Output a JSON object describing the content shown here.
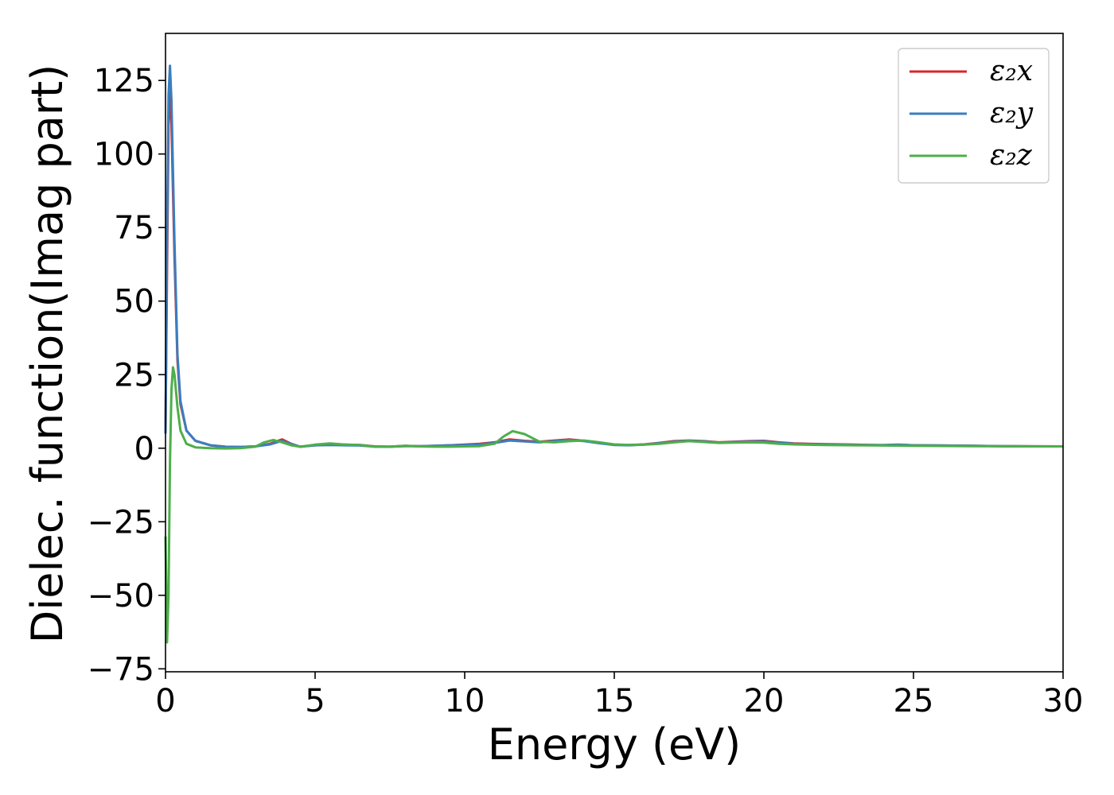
{
  "chart_data": {
    "type": "line",
    "xlabel": "Energy (eV)",
    "ylabel": "Dielec. function(Imag part)",
    "xlim": [
      0,
      30
    ],
    "ylim": [
      -76,
      141
    ],
    "xticks": [
      0,
      5,
      10,
      15,
      20,
      25,
      30
    ],
    "yticks": [
      -75,
      -50,
      -25,
      0,
      25,
      50,
      75,
      100,
      125
    ],
    "ytick_labels": [
      "−75",
      "−50",
      "−25",
      "0",
      "25",
      "50",
      "75",
      "100",
      "125"
    ],
    "grid": false,
    "legend_position": "top-right",
    "series": [
      {
        "name": "ε₂x",
        "color": "#d62728",
        "points": [
          [
            0,
            5
          ],
          [
            0.05,
            60
          ],
          [
            0.1,
            110
          ],
          [
            0.15,
            122
          ],
          [
            0.2,
            110
          ],
          [
            0.3,
            65
          ],
          [
            0.4,
            30
          ],
          [
            0.5,
            15
          ],
          [
            0.7,
            6
          ],
          [
            1,
            2.5
          ],
          [
            1.5,
            1
          ],
          [
            2,
            0.5
          ],
          [
            2.5,
            0.4
          ],
          [
            3,
            0.6
          ],
          [
            3.5,
            1.5
          ],
          [
            3.9,
            3
          ],
          [
            4.2,
            1.5
          ],
          [
            4.5,
            0.5
          ],
          [
            5,
            1
          ],
          [
            5.5,
            1.2
          ],
          [
            6,
            1.2
          ],
          [
            6.5,
            1.1
          ],
          [
            7,
            0.6
          ],
          [
            7.5,
            0.5
          ],
          [
            8,
            0.8
          ],
          [
            8.5,
            0.7
          ],
          [
            9,
            0.8
          ],
          [
            9.5,
            1
          ],
          [
            10,
            1.2
          ],
          [
            10.5,
            1.5
          ],
          [
            11,
            2
          ],
          [
            11.5,
            3
          ],
          [
            12,
            2.5
          ],
          [
            12.5,
            2.2
          ],
          [
            13,
            2.6
          ],
          [
            13.5,
            3
          ],
          [
            14,
            2.5
          ],
          [
            14.5,
            1.8
          ],
          [
            15,
            1.2
          ],
          [
            15.5,
            1.1
          ],
          [
            16,
            1.3
          ],
          [
            16.5,
            1.8
          ],
          [
            17,
            2.4
          ],
          [
            17.5,
            2.6
          ],
          [
            18,
            2.4
          ],
          [
            18.5,
            2
          ],
          [
            19,
            2.2
          ],
          [
            19.5,
            2.4
          ],
          [
            20,
            2.5
          ],
          [
            20.5,
            2
          ],
          [
            21,
            1.6
          ],
          [
            22,
            1.4
          ],
          [
            23,
            1.2
          ],
          [
            24,
            1
          ],
          [
            24.5,
            1.1
          ],
          [
            25,
            1
          ],
          [
            26,
            0.9
          ],
          [
            27,
            0.8
          ],
          [
            28,
            0.7
          ],
          [
            29,
            0.65
          ],
          [
            30,
            0.6
          ]
        ]
      },
      {
        "name": "ε₂y",
        "color": "#3a7ebf",
        "points": [
          [
            0,
            5
          ],
          [
            0.05,
            70
          ],
          [
            0.1,
            120
          ],
          [
            0.15,
            130
          ],
          [
            0.2,
            118
          ],
          [
            0.3,
            70
          ],
          [
            0.4,
            32
          ],
          [
            0.5,
            16
          ],
          [
            0.7,
            6
          ],
          [
            1,
            2.5
          ],
          [
            1.5,
            1
          ],
          [
            2,
            0.5
          ],
          [
            2.5,
            0.4
          ],
          [
            3,
            0.6
          ],
          [
            3.5,
            1.3
          ],
          [
            3.9,
            2.5
          ],
          [
            4.2,
            1.4
          ],
          [
            4.5,
            0.5
          ],
          [
            5,
            1
          ],
          [
            5.5,
            1.1
          ],
          [
            6,
            1
          ],
          [
            6.5,
            0.9
          ],
          [
            7,
            0.5
          ],
          [
            7.5,
            0.5
          ],
          [
            8,
            0.7
          ],
          [
            8.5,
            0.7
          ],
          [
            9,
            0.8
          ],
          [
            9.5,
            1
          ],
          [
            10,
            1.1
          ],
          [
            10.5,
            1.3
          ],
          [
            11,
            1.8
          ],
          [
            11.5,
            2.6
          ],
          [
            12,
            2.3
          ],
          [
            12.5,
            2
          ],
          [
            13,
            2.4
          ],
          [
            13.5,
            2.8
          ],
          [
            14,
            2.4
          ],
          [
            14.5,
            1.7
          ],
          [
            15,
            1.1
          ],
          [
            15.5,
            1
          ],
          [
            16,
            1.2
          ],
          [
            16.5,
            1.7
          ],
          [
            17,
            2.2
          ],
          [
            17.5,
            2.5
          ],
          [
            18,
            2.3
          ],
          [
            18.5,
            1.9
          ],
          [
            19,
            2.1
          ],
          [
            19.5,
            2.2
          ],
          [
            20,
            2.3
          ],
          [
            20.5,
            1.9
          ],
          [
            21,
            1.5
          ],
          [
            22,
            1.3
          ],
          [
            23,
            1.1
          ],
          [
            24,
            1.1
          ],
          [
            24.5,
            1.2
          ],
          [
            25,
            1
          ],
          [
            26,
            0.9
          ],
          [
            27,
            0.8
          ],
          [
            28,
            0.7
          ],
          [
            29,
            0.65
          ],
          [
            30,
            0.6
          ]
        ]
      },
      {
        "name": "ε₂z",
        "color": "#4daf4a",
        "points": [
          [
            0,
            -30
          ],
          [
            0.05,
            -66
          ],
          [
            0.1,
            -50
          ],
          [
            0.15,
            -5
          ],
          [
            0.2,
            20
          ],
          [
            0.25,
            27.5
          ],
          [
            0.3,
            25
          ],
          [
            0.4,
            14
          ],
          [
            0.5,
            6
          ],
          [
            0.7,
            1.5
          ],
          [
            1,
            0.3
          ],
          [
            1.5,
            0
          ],
          [
            2,
            -0.1
          ],
          [
            2.5,
            0
          ],
          [
            3,
            0.5
          ],
          [
            3.3,
            2
          ],
          [
            3.6,
            2.8
          ],
          [
            3.9,
            2
          ],
          [
            4.2,
            1
          ],
          [
            4.5,
            0.5
          ],
          [
            5,
            1.2
          ],
          [
            5.5,
            1.6
          ],
          [
            6,
            1.2
          ],
          [
            6.5,
            1.1
          ],
          [
            7,
            0.5
          ],
          [
            7.5,
            0.5
          ],
          [
            8,
            0.8
          ],
          [
            8.5,
            0.6
          ],
          [
            9,
            0.5
          ],
          [
            9.5,
            0.5
          ],
          [
            10,
            0.6
          ],
          [
            10.5,
            0.7
          ],
          [
            11,
            1.5
          ],
          [
            11.3,
            4
          ],
          [
            11.6,
            5.8
          ],
          [
            12,
            4.8
          ],
          [
            12.5,
            2.2
          ],
          [
            13,
            2
          ],
          [
            13.5,
            2.4
          ],
          [
            14,
            2.6
          ],
          [
            14.5,
            2
          ],
          [
            15,
            1.3
          ],
          [
            15.5,
            1.1
          ],
          [
            16,
            1.2
          ],
          [
            16.5,
            1.5
          ],
          [
            17,
            2
          ],
          [
            17.5,
            2.4
          ],
          [
            18,
            2.1
          ],
          [
            18.5,
            1.8
          ],
          [
            19,
            1.9
          ],
          [
            19.5,
            2
          ],
          [
            20,
            1.9
          ],
          [
            20.5,
            1.5
          ],
          [
            21,
            1.3
          ],
          [
            22,
            1.1
          ],
          [
            23,
            1
          ],
          [
            24,
            0.9
          ],
          [
            25,
            0.8
          ],
          [
            26,
            0.75
          ],
          [
            27,
            0.7
          ],
          [
            28,
            0.65
          ],
          [
            29,
            0.6
          ],
          [
            30,
            0.6
          ]
        ]
      }
    ]
  }
}
